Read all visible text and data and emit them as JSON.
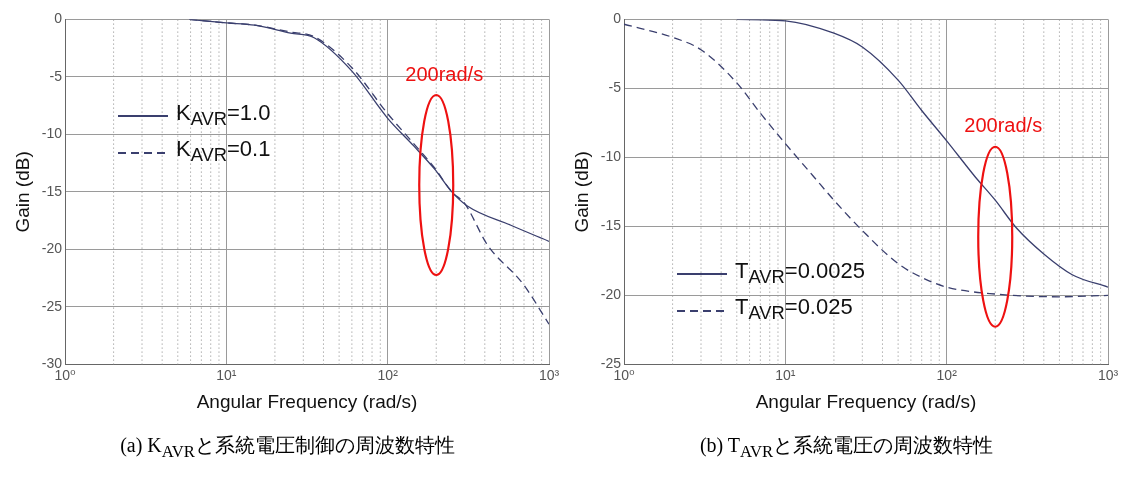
{
  "chart_data": [
    {
      "type": "line",
      "title": "(a) K$_{AVR}$と系統電圧制御の周波数特性",
      "xlabel": "Angular Frequency (rad/s)",
      "ylabel": "Gain (dB)",
      "log": "x",
      "grid": true,
      "legend": "center left",
      "marker": "none",
      "xlim": [
        1,
        1000
      ],
      "xticks": [
        {
          "value": 1,
          "label": "10⁰"
        },
        {
          "value": 10,
          "label": "10¹"
        },
        {
          "value": 100,
          "label": "10²"
        },
        {
          "value": 1000,
          "label": "10³"
        }
      ],
      "ylim": [
        -30,
        0
      ],
      "yticks": [
        0,
        -5,
        -10,
        -15,
        -20,
        -25,
        -30
      ],
      "annotations": [
        "200rad/s"
      ],
      "series": [
        {
          "name": "K$_{AVR}$=1.0",
          "color": "#3a3f6e",
          "line_style": "solid",
          "x": [
            5.9,
            10,
            15,
            25,
            35,
            60,
            100,
            145,
            195,
            250,
            310,
            580,
            1000
          ],
          "values": [
            0,
            -0.3,
            -0.5,
            -1.2,
            -1.6,
            -4.5,
            -8.6,
            -11,
            -13,
            -15,
            -16.2,
            -17.9,
            -19.3
          ]
        },
        {
          "name": "K$_{AVR}$=0.1",
          "color": "#3a3f6e",
          "line_style": "dashed",
          "x": [
            5.9,
            10,
            15,
            25,
            35,
            60,
            100,
            145,
            195,
            250,
            300,
            415,
            690,
            1000
          ],
          "values": [
            0,
            -0.3,
            -0.5,
            -1.1,
            -1.5,
            -4.2,
            -8.2,
            -10.8,
            -12.9,
            -15,
            -16,
            -19.6,
            -23,
            -26.5
          ]
        }
      ]
    },
    {
      "type": "line",
      "title": "(b) T$_{AVR}$と系統電圧の周波数特性",
      "xlabel": "Angular Frequency (rad/s)",
      "ylabel": "Gain (dB)",
      "log": "x",
      "grid": true,
      "legend": "bottom left",
      "marker": "none",
      "xlim": [
        1,
        1000
      ],
      "xticks": [
        {
          "value": 1,
          "label": "10⁰"
        },
        {
          "value": 10,
          "label": "10¹"
        },
        {
          "value": 100,
          "label": "10²"
        },
        {
          "value": 1000,
          "label": "10³"
        }
      ],
      "ylim": [
        -25,
        0
      ],
      "yticks": [
        0,
        -5,
        -10,
        -15,
        -20,
        -25
      ],
      "annotations": [
        "200rad/s"
      ],
      "series": [
        {
          "name": "T$_{AVR}$=0.0025",
          "color": "#3a3f6e",
          "line_style": "solid",
          "x": [
            5,
            10,
            20,
            30,
            50,
            70,
            100,
            150,
            200,
            270,
            400,
            600,
            1000
          ],
          "values": [
            0,
            -0.1,
            -1,
            -2,
            -4.4,
            -6.6,
            -8.8,
            -11.4,
            -13.1,
            -15.1,
            -17,
            -18.5,
            -19.4
          ]
        },
        {
          "name": "T$_{AVR}$=0.025",
          "color": "#3a3f6e",
          "line_style": "dashed",
          "x": [
            1,
            2,
            3,
            5,
            7,
            10,
            15,
            20,
            30,
            50,
            70,
            100,
            200,
            500,
            1000
          ],
          "values": [
            -0.35,
            -1.3,
            -2.2,
            -4.6,
            -6.8,
            -9,
            -11.4,
            -13.1,
            -15.3,
            -17.7,
            -18.7,
            -19.4,
            -19.9,
            -20.1,
            -20
          ]
        }
      ]
    }
  ]
}
